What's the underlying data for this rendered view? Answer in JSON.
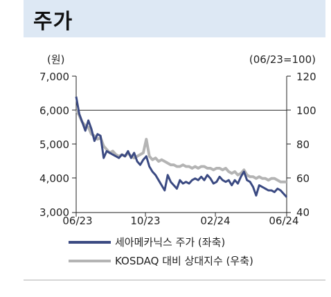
{
  "header": {
    "title": "주가"
  },
  "chart_data": {
    "type": "line",
    "left_axis": {
      "unit_label": "(원)",
      "ylim": [
        3000,
        7000
      ],
      "ticks": [
        "7,000",
        "6,000",
        "5,000",
        "4,000",
        "3,000"
      ]
    },
    "right_axis": {
      "unit_label": "(06/23=100)",
      "ylim": [
        40,
        120
      ],
      "ticks": [
        "120",
        "100",
        "80",
        "60",
        "40"
      ]
    },
    "x_ticks": [
      "06/23",
      "10/23",
      "02/24",
      "06/24"
    ],
    "reference_line_right": 100,
    "series": [
      {
        "name": "세아메카닉스 주가 (좌축)",
        "axis": "left",
        "color": "#3b4a82",
        "values": [
          6400,
          5900,
          5650,
          5400,
          5700,
          5450,
          5100,
          5300,
          5250,
          4600,
          4800,
          4750,
          4700,
          4650,
          4600,
          4700,
          4650,
          4800,
          4600,
          4750,
          4500,
          4400,
          4550,
          4650,
          4350,
          4200,
          4100,
          3950,
          3800,
          3650,
          4100,
          3900,
          3800,
          3700,
          3950,
          3850,
          3900,
          3850,
          3950,
          4000,
          3950,
          4050,
          3950,
          4100,
          4000,
          3850,
          3900,
          4050,
          3950,
          3900,
          3950,
          3800,
          3950,
          3850,
          4050,
          4200,
          3950,
          3900,
          3750,
          3500,
          3800,
          3750,
          3700,
          3650,
          3650,
          3600,
          3700,
          3650,
          3550,
          3450
        ],
        "x_start": "2023-06-23",
        "x_end": "2024-06-24"
      },
      {
        "name": "KOSDAQ 대비 상대지수 (우축)",
        "axis": "right",
        "color": "#b4b4b4",
        "values": [
          100,
          97,
          93,
          91,
          90,
          86,
          85,
          83,
          84,
          79,
          77,
          75,
          76,
          74,
          73,
          74,
          73,
          75,
          73,
          72,
          73,
          74,
          75,
          83,
          73,
          71,
          72,
          70,
          71,
          70,
          69,
          68,
          68,
          67,
          67,
          68,
          67,
          67,
          66,
          67,
          66,
          67,
          67,
          66,
          66,
          65,
          66,
          66,
          65,
          66,
          64,
          63,
          64,
          62,
          63,
          65,
          62,
          61,
          61,
          60,
          61,
          60,
          60,
          59,
          60,
          60,
          59,
          58,
          58,
          58
        ],
        "x_start": "2023-06-23",
        "x_end": "2024-06-24"
      }
    ]
  }
}
